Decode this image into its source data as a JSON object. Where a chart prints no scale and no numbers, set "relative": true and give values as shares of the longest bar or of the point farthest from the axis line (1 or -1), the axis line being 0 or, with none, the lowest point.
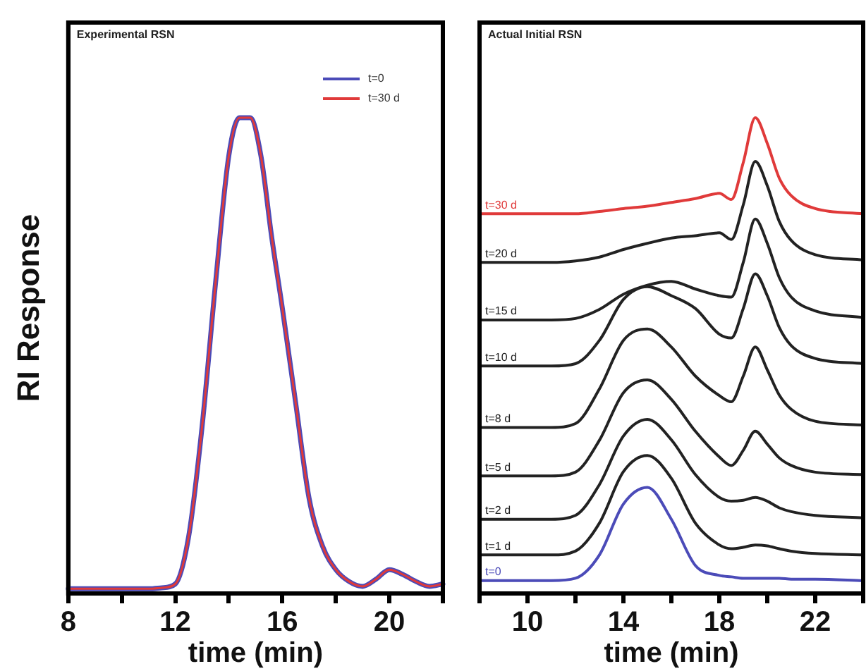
{
  "chart_data": [
    {
      "type": "line",
      "title": "Experimental RSN",
      "xlabel": "time (min)",
      "ylabel": "RI Response",
      "relative": true,
      "legend": "top right",
      "grid": false,
      "marker": "none",
      "line_style": "solid",
      "xlim": [
        8,
        22
      ],
      "xticks": [
        8,
        {
          "value": 10,
          "label": null
        },
        12,
        {
          "value": 14,
          "label": null
        },
        16,
        {
          "value": 18,
          "label": null
        },
        20,
        {
          "value": 22,
          "label": null
        }
      ],
      "x": [
        8,
        11,
        11.5,
        12,
        12.5,
        13,
        13.5,
        14,
        14.4,
        14.8,
        15.2,
        15.6,
        16,
        16.5,
        17,
        17.5,
        18,
        18.5,
        19,
        19.5,
        20,
        20.5,
        21,
        21.5,
        22
      ],
      "series": [
        {
          "name": "t=30 d",
          "color": "#e03a3a",
          "values": [
            0.01,
            0.01,
            0.012,
            0.02,
            0.12,
            0.35,
            0.65,
            0.92,
            1,
            1,
            0.92,
            0.75,
            0.6,
            0.4,
            0.2,
            0.1,
            0.05,
            0.025,
            0.015,
            0.03,
            0.05,
            0.04,
            0.025,
            0.015,
            0.02
          ]
        },
        {
          "name": "t=0",
          "color": "#4b4bb8",
          "values": [
            0.01,
            0.01,
            0.012,
            0.02,
            0.12,
            0.35,
            0.65,
            0.92,
            1,
            1,
            0.92,
            0.75,
            0.6,
            0.4,
            0.2,
            0.1,
            0.05,
            0.025,
            0.015,
            0.03,
            0.05,
            0.04,
            0.025,
            0.015,
            0.02
          ]
        }
      ]
    },
    {
      "type": "line",
      "title": "Actual Initial RSN",
      "xlabel": "time (min)",
      "relative": true,
      "grid": false,
      "marker": "none",
      "line_style": "solid",
      "xlim": [
        8,
        24
      ],
      "xticks": [
        {
          "value": 8,
          "label": null
        },
        10,
        {
          "value": 12,
          "label": null
        },
        14,
        {
          "value": 16,
          "label": null
        },
        18,
        {
          "value": 20,
          "label": null
        },
        22,
        {
          "value": 24,
          "label": null
        }
      ],
      "x": [
        8,
        11,
        12,
        13,
        14,
        15,
        16,
        17,
        18,
        18.5,
        19,
        19.5,
        20,
        20.5,
        21,
        22,
        24
      ],
      "series": [
        {
          "name": "t=30 d",
          "color": "#e03a3a",
          "values": [
            0.798,
            0.798,
            0.798,
            0.803,
            0.809,
            0.814,
            0.822,
            0.83,
            0.841,
            0.828,
            0.906,
            1,
            0.946,
            0.873,
            0.836,
            0.809,
            0.798
          ]
        },
        {
          "name": "t=20 d",
          "color": "#222222",
          "values": [
            0.696,
            0.696,
            0.699,
            0.707,
            0.723,
            0.736,
            0.747,
            0.752,
            0.758,
            0.744,
            0.817,
            0.908,
            0.857,
            0.782,
            0.742,
            0.712,
            0.701
          ]
        },
        {
          "name": "t=15 d",
          "color": "#222222",
          "values": [
            0.575,
            0.575,
            0.578,
            0.597,
            0.629,
            0.648,
            0.656,
            0.64,
            0.626,
            0.623,
            0.696,
            0.787,
            0.736,
            0.664,
            0.623,
            0.594,
            0.58
          ]
        },
        {
          "name": "t=10 d",
          "color": "#222222",
          "values": [
            0.478,
            0.478,
            0.483,
            0.532,
            0.618,
            0.645,
            0.626,
            0.599,
            0.545,
            0.537,
            0.599,
            0.672,
            0.626,
            0.559,
            0.521,
            0.494,
            0.483
          ]
        },
        {
          "name": "t=8 d",
          "color": "#222222",
          "values": [
            0.349,
            0.349,
            0.357,
            0.43,
            0.532,
            0.556,
            0.518,
            0.457,
            0.416,
            0.403,
            0.457,
            0.518,
            0.47,
            0.417,
            0.387,
            0.362,
            0.354
          ]
        },
        {
          "name": "t=5 d",
          "color": "#222222",
          "values": [
            0.247,
            0.247,
            0.255,
            0.322,
            0.422,
            0.449,
            0.408,
            0.341,
            0.287,
            0.269,
            0.301,
            0.341,
            0.314,
            0.285,
            0.269,
            0.255,
            0.25
          ]
        },
        {
          "name": "t=2 d",
          "color": "#222222",
          "values": [
            0.156,
            0.156,
            0.164,
            0.229,
            0.331,
            0.366,
            0.323,
            0.25,
            0.202,
            0.194,
            0.196,
            0.202,
            0.194,
            0.18,
            0.172,
            0.164,
            0.159
          ]
        },
        {
          "name": "t=1 d",
          "color": "#222222",
          "values": [
            0.081,
            0.081,
            0.089,
            0.148,
            0.256,
            0.29,
            0.242,
            0.148,
            0.102,
            0.094,
            0.097,
            0.102,
            0.1,
            0.094,
            0.089,
            0.084,
            0.081
          ]
        },
        {
          "name": "t=0",
          "color": "#4b4bb8",
          "values": [
            0.027,
            0.027,
            0.032,
            0.081,
            0.188,
            0.223,
            0.156,
            0.059,
            0.038,
            0.035,
            0.032,
            0.032,
            0.032,
            0.032,
            0.03,
            0.03,
            0.027
          ]
        }
      ]
    }
  ]
}
